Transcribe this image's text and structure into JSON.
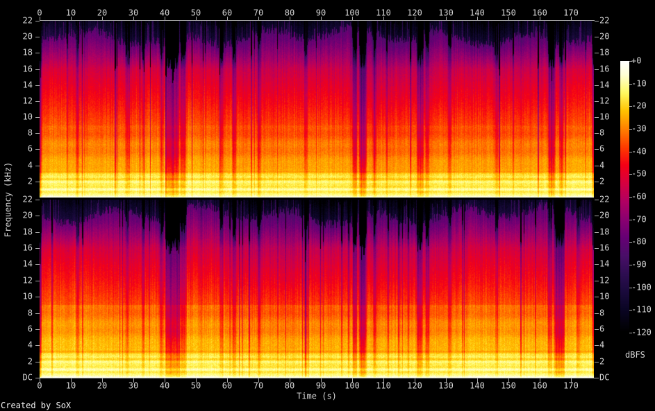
{
  "figure": {
    "footer_text": "Created by SoX",
    "x_axis_title": "Time (s)",
    "y_axis_title": "Frequency (kHz)",
    "colorbar_title": "dBFS"
  },
  "chart_data": {
    "type": "heatmap",
    "subtype": "stereo-audio-spectrogram",
    "title": "",
    "tool_credit": "Created by SoX",
    "x_axis": {
      "label": "Time (s)",
      "unit": "s",
      "range_s": [
        0,
        177.3
      ],
      "tick_values": [
        0,
        10,
        20,
        30,
        40,
        50,
        60,
        70,
        80,
        90,
        100,
        110,
        120,
        130,
        140,
        150,
        160,
        170
      ]
    },
    "y_axis": {
      "label": "Frequency (kHz)",
      "unit": "kHz",
      "range_khz": [
        0,
        22
      ],
      "tick_values": [
        22,
        20,
        18,
        16,
        14,
        12,
        10,
        8,
        6,
        4,
        2
      ],
      "dc_label": "DC"
    },
    "colorbar": {
      "label": "dBFS",
      "range_db": [
        0,
        -120
      ],
      "tick_labels": [
        "+0",
        "-10",
        "-20",
        "-30",
        "-40",
        "-50",
        "-60",
        "-70",
        "-80",
        "-90",
        "-100",
        "-110",
        "-120"
      ],
      "palette_stops": [
        [
          0,
          "#ffffff"
        ],
        [
          6,
          "#ffffd5"
        ],
        [
          14,
          "#fff960"
        ],
        [
          22,
          "#ffc200"
        ],
        [
          30,
          "#ff8000"
        ],
        [
          38,
          "#ff3c00"
        ],
        [
          46,
          "#f50016"
        ],
        [
          54,
          "#d60040"
        ],
        [
          62,
          "#b10062"
        ],
        [
          70,
          "#8b0070"
        ],
        [
          78,
          "#660074"
        ],
        [
          86,
          "#4a0e68"
        ],
        [
          94,
          "#2e0d52"
        ],
        [
          102,
          "#1a0a3c"
        ],
        [
          110,
          "#0a0524"
        ],
        [
          120,
          "#000000"
        ]
      ]
    },
    "panels": [
      {
        "name": "channel-1",
        "description": "upper spectrogram, first audio channel, DC-22 kHz"
      },
      {
        "name": "channel-2",
        "description": "lower spectrogram, second audio channel, DC-22 kHz"
      }
    ],
    "render_params": {
      "panels": [
        {
          "seed": 101,
          "warm": 0.5,
          "ph": [
            0.3,
            1.9,
            4.1,
            2.2
          ],
          "quiet_regions": [
            [
              0,
              0.4,
              0.9
            ],
            [
              11.7,
              12.4,
              0.45
            ],
            [
              27.5,
              28.2,
              0.4
            ],
            [
              32.8,
              33.4,
              0.35
            ],
            [
              38.5,
              39.4,
              0.5
            ],
            [
              40.2,
              44.4,
              0.8
            ],
            [
              44.9,
              46.7,
              0.55
            ],
            [
              57.7,
              58.5,
              0.45
            ],
            [
              61.7,
              62.6,
              0.5
            ],
            [
              69.7,
              70.5,
              0.45
            ],
            [
              84.7,
              85.5,
              0.4
            ],
            [
              100.2,
              101.3,
              0.75
            ],
            [
              102.3,
              104.3,
              0.9
            ],
            [
              106.7,
              107.5,
              0.5
            ],
            [
              120.7,
              122.3,
              0.6
            ],
            [
              123.5,
              124.4,
              0.5
            ],
            [
              130.7,
              131.5,
              0.4
            ],
            [
              145.7,
              146.5,
              0.4
            ],
            [
              162.7,
              164.7,
              0.65
            ],
            [
              166.3,
              167.4,
              0.55
            ],
            [
              176.9,
              177.6,
              0.9
            ]
          ]
        },
        {
          "seed": 202,
          "warm": 3,
          "ph": [
            1.1,
            0.4,
            2.6,
            5.0
          ],
          "quiet_regions": [
            [
              0,
              0.4,
              0.9
            ],
            [
              11.7,
              12.4,
              0.4
            ],
            [
              27.5,
              28.2,
              0.4
            ],
            [
              32.8,
              33.4,
              0.35
            ],
            [
              38.5,
              39.4,
              0.5
            ],
            [
              40.2,
              44.4,
              0.8
            ],
            [
              44.9,
              46.7,
              0.55
            ],
            [
              57.7,
              58.5,
              0.45
            ],
            [
              61.7,
              62.6,
              0.5
            ],
            [
              69.7,
              70.5,
              0.45
            ],
            [
              84.7,
              85.5,
              0.4
            ],
            [
              100.2,
              101.3,
              0.75
            ],
            [
              102.3,
              104.3,
              0.9
            ],
            [
              106.7,
              107.5,
              0.5
            ],
            [
              120.7,
              122.3,
              0.6
            ],
            [
              123.5,
              124.4,
              0.5
            ],
            [
              130.7,
              131.5,
              0.4
            ],
            [
              145.7,
              146.5,
              0.4
            ],
            [
              162.6,
              163.7,
              0.5
            ],
            [
              164.7,
              167.7,
              0.85
            ],
            [
              171.9,
              172.6,
              0.4
            ],
            [
              176.9,
              177.6,
              0.9
            ]
          ]
        }
      ]
    }
  }
}
